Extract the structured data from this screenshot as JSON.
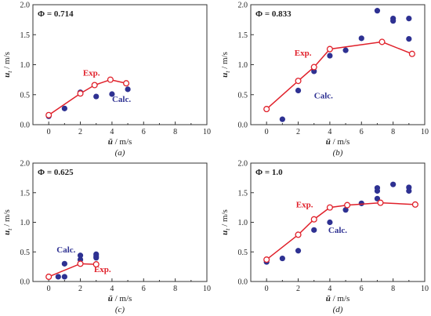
{
  "colors": {
    "exp": "#e0202a",
    "calc": "#2e3192",
    "axis": "#333333"
  },
  "chart_data": [
    {
      "type": "scatter",
      "phi_label": "Φ = 0.714",
      "caption": "(a)",
      "ylabel_main": "u",
      "ylabel_sub": "t",
      "ylabel_unit": " / m/s",
      "xlabel_main": "ū",
      "xlabel_unit": " / m/s",
      "xlim": [
        -1,
        10
      ],
      "ylim": [
        0,
        2.0
      ],
      "xticks": [
        "0",
        "2",
        "4",
        "6",
        "8",
        "10"
      ],
      "yticks": [
        "0.0",
        "0.5",
        "1.0",
        "1.5",
        "2.0"
      ],
      "series": [
        {
          "name": "Exp.",
          "style": "line-open-circle",
          "x": [
            0,
            2.0,
            2.9,
            3.9,
            4.9
          ],
          "y": [
            0.16,
            0.52,
            0.66,
            0.75,
            0.69
          ]
        },
        {
          "name": "Calc.",
          "style": "filled-circle",
          "x": [
            0,
            1.0,
            2.0,
            3.0,
            4.0,
            5.0
          ],
          "y": [
            0.14,
            0.27,
            0.54,
            0.47,
            0.51,
            0.59
          ]
        }
      ],
      "annotations": [
        {
          "text": "Exp.",
          "series": "exp",
          "x": 2.7,
          "y": 0.82
        },
        {
          "text": "Calc.",
          "series": "calc",
          "x": 4.6,
          "y": 0.38
        }
      ]
    },
    {
      "type": "scatter",
      "phi_label": "Φ = 0.833",
      "caption": "(b)",
      "ylabel_main": "u",
      "ylabel_sub": "t",
      "ylabel_unit": " / m/s",
      "xlabel_main": "ū",
      "xlabel_unit": " / m/s",
      "xlim": [
        -1,
        10
      ],
      "ylim": [
        0,
        2.0
      ],
      "xticks": [
        "0",
        "2",
        "4",
        "6",
        "8",
        "10"
      ],
      "yticks": [
        "0.0",
        "0.5",
        "1.0",
        "1.5",
        "2.0"
      ],
      "series": [
        {
          "name": "Exp.",
          "style": "line-open-circle",
          "x": [
            0,
            2.0,
            3.0,
            4.0,
            7.3,
            9.2
          ],
          "y": [
            0.26,
            0.73,
            0.96,
            1.26,
            1.38,
            1.18
          ]
        },
        {
          "name": "Calc.",
          "style": "filled-circle",
          "x": [
            0,
            1.0,
            2.0,
            3.0,
            4.0,
            5.0,
            6.0,
            7.0,
            8.0,
            8.0,
            9.0,
            9.0
          ],
          "y": [
            0.26,
            0.09,
            0.57,
            0.89,
            1.15,
            1.24,
            1.44,
            1.9,
            1.77,
            1.73,
            1.77,
            1.43
          ]
        }
      ],
      "annotations": [
        {
          "text": "Exp.",
          "series": "exp",
          "x": 2.3,
          "y": 1.15
        },
        {
          "text": "Calc.",
          "series": "calc",
          "x": 3.6,
          "y": 0.44
        }
      ]
    },
    {
      "type": "scatter",
      "phi_label": "Φ = 0.625",
      "caption": "(c)",
      "ylabel_main": "u",
      "ylabel_sub": "t",
      "ylabel_unit": " / m/s",
      "xlabel_main": "ū",
      "xlabel_unit": " / m/s",
      "xlim": [
        -1,
        10
      ],
      "ylim": [
        0,
        2.0
      ],
      "xticks": [
        "0",
        "2",
        "4",
        "6",
        "8",
        "10"
      ],
      "yticks": [
        "0.0",
        "0.5",
        "1.0",
        "1.5",
        "2.0"
      ],
      "series": [
        {
          "name": "Exp.",
          "style": "line-open-circle",
          "x": [
            0,
            2.0,
            3.0
          ],
          "y": [
            0.08,
            0.3,
            0.29
          ]
        },
        {
          "name": "Calc.",
          "style": "filled-circle",
          "x": [
            0.6,
            1.0,
            1.0,
            2.0,
            2.0,
            3.0,
            3.0,
            3.0
          ],
          "y": [
            0.08,
            0.08,
            0.3,
            0.44,
            0.37,
            0.46,
            0.43,
            0.4
          ]
        }
      ],
      "annotations": [
        {
          "text": "Exp.",
          "series": "exp",
          "x": 3.4,
          "y": 0.16
        },
        {
          "text": "Calc.",
          "series": "calc",
          "x": 1.1,
          "y": 0.49
        }
      ]
    },
    {
      "type": "scatter",
      "phi_label": "Φ = 1.0",
      "caption": "(d)",
      "ylabel_main": "u",
      "ylabel_sub": "t",
      "ylabel_unit": " / m/s",
      "xlabel_main": "ū",
      "xlabel_unit": " / m/s",
      "xlim": [
        -1,
        10
      ],
      "ylim": [
        0,
        2.0
      ],
      "xticks": [
        "0",
        "2",
        "4",
        "6",
        "8",
        "10"
      ],
      "yticks": [
        "0.0",
        "0.5",
        "1.0",
        "1.5",
        "2.0"
      ],
      "series": [
        {
          "name": "Exp.",
          "style": "line-open-circle",
          "x": [
            0,
            2.0,
            3.0,
            4.0,
            5.1,
            7.2,
            9.4
          ],
          "y": [
            0.37,
            0.79,
            1.05,
            1.25,
            1.29,
            1.33,
            1.3
          ]
        },
        {
          "name": "Calc.",
          "style": "filled-circle",
          "x": [
            0,
            1.0,
            2.0,
            3.0,
            4.0,
            5.0,
            6.0,
            7.0,
            7.0,
            7.0,
            8.0,
            9.0,
            9.0
          ],
          "y": [
            0.33,
            0.39,
            0.52,
            0.87,
            1.0,
            1.21,
            1.32,
            1.4,
            1.53,
            1.58,
            1.64,
            1.59,
            1.53
          ]
        }
      ],
      "annotations": [
        {
          "text": "Exp.",
          "series": "exp",
          "x": 2.4,
          "y": 1.25
        },
        {
          "text": "Calc.",
          "series": "calc",
          "x": 4.5,
          "y": 0.82
        }
      ]
    }
  ]
}
